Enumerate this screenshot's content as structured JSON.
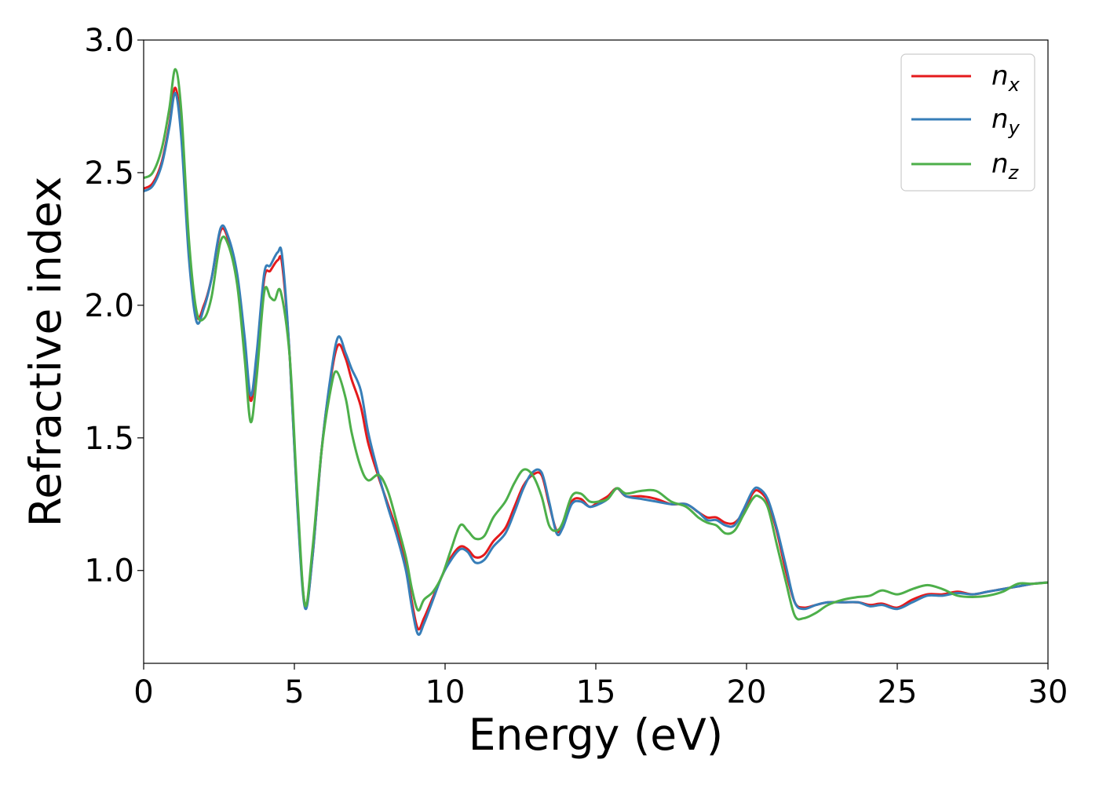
{
  "chart_data": {
    "type": "line",
    "title": "",
    "xlabel": "Energy (eV)",
    "ylabel": "Refractive index",
    "xlim": [
      0,
      30
    ],
    "ylim": [
      0.65,
      3.0
    ],
    "xticks": [
      0,
      5,
      10,
      15,
      20,
      25,
      30
    ],
    "xtick_labels": [
      "0",
      "5",
      "10",
      "15",
      "20",
      "25",
      "30"
    ],
    "yticks": [
      1.0,
      1.5,
      2.0,
      2.5,
      3.0
    ],
    "ytick_labels": [
      "1.0",
      "1.5",
      "2.0",
      "2.5",
      "3.0"
    ],
    "grid": false,
    "legend_position": "top-right",
    "series": [
      {
        "name": "n_x",
        "legend_base": "n",
        "legend_sub": "x",
        "color": "#e41a1c",
        "points": [
          [
            0,
            2.44
          ],
          [
            0.3,
            2.46
          ],
          [
            0.6,
            2.54
          ],
          [
            0.85,
            2.68
          ],
          [
            1.05,
            2.82
          ],
          [
            1.25,
            2.65
          ],
          [
            1.5,
            2.2
          ],
          [
            1.75,
            1.96
          ],
          [
            2.0,
            2.0
          ],
          [
            2.25,
            2.1
          ],
          [
            2.55,
            2.28
          ],
          [
            2.8,
            2.25
          ],
          [
            3.1,
            2.1
          ],
          [
            3.35,
            1.85
          ],
          [
            3.55,
            1.64
          ],
          [
            3.75,
            1.8
          ],
          [
            4.0,
            2.1
          ],
          [
            4.2,
            2.13
          ],
          [
            4.45,
            2.17
          ],
          [
            4.6,
            2.15
          ],
          [
            4.85,
            1.8
          ],
          [
            5.1,
            1.25
          ],
          [
            5.35,
            0.87
          ],
          [
            5.6,
            1.05
          ],
          [
            5.9,
            1.45
          ],
          [
            6.2,
            1.72
          ],
          [
            6.45,
            1.85
          ],
          [
            6.7,
            1.8
          ],
          [
            6.9,
            1.72
          ],
          [
            7.2,
            1.62
          ],
          [
            7.45,
            1.48
          ],
          [
            7.8,
            1.35
          ],
          [
            8.1,
            1.25
          ],
          [
            8.4,
            1.15
          ],
          [
            8.7,
            1.02
          ],
          [
            8.9,
            0.88
          ],
          [
            9.1,
            0.78
          ],
          [
            9.3,
            0.82
          ],
          [
            9.6,
            0.9
          ],
          [
            9.9,
            0.98
          ],
          [
            10.2,
            1.05
          ],
          [
            10.5,
            1.09
          ],
          [
            10.75,
            1.08
          ],
          [
            11.0,
            1.05
          ],
          [
            11.3,
            1.06
          ],
          [
            11.6,
            1.11
          ],
          [
            12.0,
            1.16
          ],
          [
            12.3,
            1.24
          ],
          [
            12.6,
            1.32
          ],
          [
            12.9,
            1.36
          ],
          [
            13.2,
            1.36
          ],
          [
            13.45,
            1.25
          ],
          [
            13.7,
            1.15
          ],
          [
            13.9,
            1.17
          ],
          [
            14.2,
            1.26
          ],
          [
            14.5,
            1.27
          ],
          [
            14.8,
            1.24
          ],
          [
            15.1,
            1.26
          ],
          [
            15.4,
            1.28
          ],
          [
            15.7,
            1.31
          ],
          [
            16.0,
            1.28
          ],
          [
            16.5,
            1.28
          ],
          [
            17.0,
            1.27
          ],
          [
            17.5,
            1.25
          ],
          [
            18.0,
            1.25
          ],
          [
            18.4,
            1.22
          ],
          [
            18.7,
            1.2
          ],
          [
            19.0,
            1.2
          ],
          [
            19.3,
            1.18
          ],
          [
            19.6,
            1.18
          ],
          [
            19.9,
            1.22
          ],
          [
            20.2,
            1.29
          ],
          [
            20.4,
            1.3
          ],
          [
            20.7,
            1.26
          ],
          [
            21.0,
            1.15
          ],
          [
            21.3,
            1.0
          ],
          [
            21.6,
            0.88
          ],
          [
            21.9,
            0.86
          ],
          [
            22.3,
            0.87
          ],
          [
            22.7,
            0.88
          ],
          [
            23.2,
            0.88
          ],
          [
            23.7,
            0.88
          ],
          [
            24.1,
            0.87
          ],
          [
            24.5,
            0.875
          ],
          [
            25.0,
            0.86
          ],
          [
            25.5,
            0.89
          ],
          [
            26.0,
            0.91
          ],
          [
            26.5,
            0.91
          ],
          [
            27.0,
            0.92
          ],
          [
            27.5,
            0.91
          ],
          [
            28.0,
            0.92
          ],
          [
            28.5,
            0.93
          ],
          [
            29.0,
            0.94
          ],
          [
            29.5,
            0.95
          ],
          [
            30.0,
            0.955
          ]
        ]
      },
      {
        "name": "n_y",
        "legend_base": "n",
        "legend_sub": "y",
        "color": "#377eb8",
        "points": [
          [
            0,
            2.43
          ],
          [
            0.3,
            2.45
          ],
          [
            0.6,
            2.53
          ],
          [
            0.85,
            2.67
          ],
          [
            1.05,
            2.8
          ],
          [
            1.25,
            2.63
          ],
          [
            1.5,
            2.18
          ],
          [
            1.75,
            1.94
          ],
          [
            2.0,
            1.99
          ],
          [
            2.25,
            2.1
          ],
          [
            2.55,
            2.29
          ],
          [
            2.8,
            2.26
          ],
          [
            3.1,
            2.12
          ],
          [
            3.35,
            1.88
          ],
          [
            3.55,
            1.66
          ],
          [
            3.75,
            1.82
          ],
          [
            4.0,
            2.12
          ],
          [
            4.2,
            2.15
          ],
          [
            4.45,
            2.2
          ],
          [
            4.6,
            2.18
          ],
          [
            4.85,
            1.8
          ],
          [
            5.1,
            1.24
          ],
          [
            5.35,
            0.86
          ],
          [
            5.6,
            1.05
          ],
          [
            5.9,
            1.45
          ],
          [
            6.2,
            1.73
          ],
          [
            6.45,
            1.88
          ],
          [
            6.7,
            1.82
          ],
          [
            6.9,
            1.76
          ],
          [
            7.2,
            1.68
          ],
          [
            7.45,
            1.52
          ],
          [
            7.8,
            1.36
          ],
          [
            8.1,
            1.24
          ],
          [
            8.4,
            1.13
          ],
          [
            8.7,
            1.0
          ],
          [
            8.9,
            0.86
          ],
          [
            9.1,
            0.76
          ],
          [
            9.3,
            0.8
          ],
          [
            9.6,
            0.89
          ],
          [
            9.9,
            0.98
          ],
          [
            10.2,
            1.04
          ],
          [
            10.5,
            1.08
          ],
          [
            10.75,
            1.07
          ],
          [
            11.0,
            1.03
          ],
          [
            11.3,
            1.04
          ],
          [
            11.6,
            1.09
          ],
          [
            12.0,
            1.14
          ],
          [
            12.3,
            1.22
          ],
          [
            12.6,
            1.31
          ],
          [
            12.9,
            1.37
          ],
          [
            13.2,
            1.37
          ],
          [
            13.45,
            1.26
          ],
          [
            13.7,
            1.14
          ],
          [
            13.9,
            1.16
          ],
          [
            14.2,
            1.25
          ],
          [
            14.5,
            1.26
          ],
          [
            14.8,
            1.24
          ],
          [
            15.1,
            1.25
          ],
          [
            15.4,
            1.27
          ],
          [
            15.7,
            1.31
          ],
          [
            16.0,
            1.28
          ],
          [
            16.5,
            1.27
          ],
          [
            17.0,
            1.26
          ],
          [
            17.5,
            1.25
          ],
          [
            18.0,
            1.25
          ],
          [
            18.4,
            1.22
          ],
          [
            18.7,
            1.19
          ],
          [
            19.0,
            1.19
          ],
          [
            19.3,
            1.17
          ],
          [
            19.6,
            1.17
          ],
          [
            19.9,
            1.23
          ],
          [
            20.2,
            1.3
          ],
          [
            20.4,
            1.31
          ],
          [
            20.7,
            1.27
          ],
          [
            21.0,
            1.16
          ],
          [
            21.3,
            1.02
          ],
          [
            21.6,
            0.88
          ],
          [
            21.9,
            0.855
          ],
          [
            22.3,
            0.87
          ],
          [
            22.7,
            0.88
          ],
          [
            23.2,
            0.88
          ],
          [
            23.7,
            0.88
          ],
          [
            24.1,
            0.865
          ],
          [
            24.5,
            0.87
          ],
          [
            25.0,
            0.855
          ],
          [
            25.5,
            0.88
          ],
          [
            26.0,
            0.905
          ],
          [
            26.5,
            0.905
          ],
          [
            27.0,
            0.915
          ],
          [
            27.5,
            0.91
          ],
          [
            28.0,
            0.92
          ],
          [
            28.5,
            0.93
          ],
          [
            29.0,
            0.94
          ],
          [
            29.5,
            0.95
          ],
          [
            30.0,
            0.955
          ]
        ]
      },
      {
        "name": "n_z",
        "legend_base": "n",
        "legend_sub": "z",
        "color": "#4daf4a",
        "points": [
          [
            0,
            2.48
          ],
          [
            0.3,
            2.5
          ],
          [
            0.6,
            2.59
          ],
          [
            0.85,
            2.74
          ],
          [
            1.05,
            2.89
          ],
          [
            1.25,
            2.73
          ],
          [
            1.5,
            2.25
          ],
          [
            1.75,
            1.98
          ],
          [
            2.0,
            1.95
          ],
          [
            2.25,
            2.03
          ],
          [
            2.55,
            2.24
          ],
          [
            2.8,
            2.23
          ],
          [
            3.1,
            2.08
          ],
          [
            3.35,
            1.8
          ],
          [
            3.55,
            1.56
          ],
          [
            3.75,
            1.73
          ],
          [
            4.0,
            2.05
          ],
          [
            4.2,
            2.03
          ],
          [
            4.35,
            2.02
          ],
          [
            4.55,
            2.05
          ],
          [
            4.85,
            1.8
          ],
          [
            5.1,
            1.28
          ],
          [
            5.35,
            0.87
          ],
          [
            5.6,
            1.08
          ],
          [
            5.9,
            1.45
          ],
          [
            6.2,
            1.68
          ],
          [
            6.4,
            1.75
          ],
          [
            6.7,
            1.65
          ],
          [
            6.9,
            1.52
          ],
          [
            7.2,
            1.39
          ],
          [
            7.45,
            1.34
          ],
          [
            7.8,
            1.36
          ],
          [
            8.1,
            1.3
          ],
          [
            8.4,
            1.18
          ],
          [
            8.7,
            1.05
          ],
          [
            8.9,
            0.93
          ],
          [
            9.1,
            0.85
          ],
          [
            9.3,
            0.89
          ],
          [
            9.6,
            0.92
          ],
          [
            9.9,
            0.98
          ],
          [
            10.2,
            1.08
          ],
          [
            10.5,
            1.17
          ],
          [
            10.75,
            1.15
          ],
          [
            11.0,
            1.12
          ],
          [
            11.3,
            1.13
          ],
          [
            11.6,
            1.2
          ],
          [
            12.0,
            1.26
          ],
          [
            12.3,
            1.33
          ],
          [
            12.6,
            1.38
          ],
          [
            12.9,
            1.36
          ],
          [
            13.2,
            1.28
          ],
          [
            13.45,
            1.17
          ],
          [
            13.7,
            1.15
          ],
          [
            13.9,
            1.18
          ],
          [
            14.2,
            1.28
          ],
          [
            14.5,
            1.29
          ],
          [
            14.8,
            1.26
          ],
          [
            15.1,
            1.26
          ],
          [
            15.4,
            1.27
          ],
          [
            15.7,
            1.31
          ],
          [
            16.0,
            1.29
          ],
          [
            16.5,
            1.3
          ],
          [
            17.0,
            1.3
          ],
          [
            17.5,
            1.26
          ],
          [
            18.0,
            1.24
          ],
          [
            18.4,
            1.2
          ],
          [
            18.7,
            1.18
          ],
          [
            19.0,
            1.17
          ],
          [
            19.3,
            1.14
          ],
          [
            19.6,
            1.15
          ],
          [
            19.9,
            1.21
          ],
          [
            20.2,
            1.27
          ],
          [
            20.4,
            1.28
          ],
          [
            20.7,
            1.24
          ],
          [
            21.0,
            1.1
          ],
          [
            21.3,
            0.96
          ],
          [
            21.6,
            0.83
          ],
          [
            21.9,
            0.82
          ],
          [
            22.3,
            0.84
          ],
          [
            22.7,
            0.87
          ],
          [
            23.2,
            0.89
          ],
          [
            23.7,
            0.9
          ],
          [
            24.1,
            0.905
          ],
          [
            24.5,
            0.925
          ],
          [
            25.0,
            0.91
          ],
          [
            25.5,
            0.93
          ],
          [
            26.0,
            0.945
          ],
          [
            26.5,
            0.93
          ],
          [
            27.0,
            0.905
          ],
          [
            27.5,
            0.9
          ],
          [
            28.0,
            0.905
          ],
          [
            28.5,
            0.92
          ],
          [
            29.0,
            0.95
          ],
          [
            29.5,
            0.95
          ],
          [
            30.0,
            0.955
          ]
        ]
      }
    ]
  }
}
